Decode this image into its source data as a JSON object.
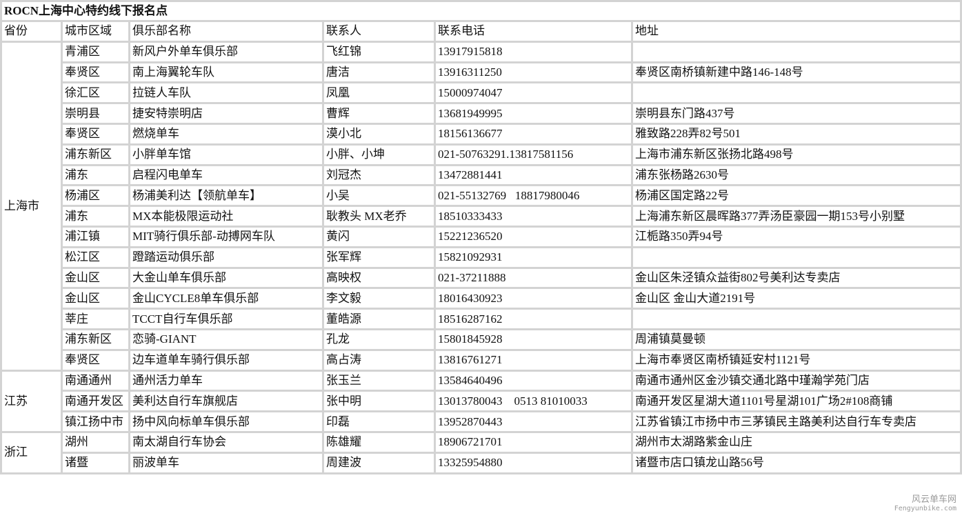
{
  "title": "ROCN上海中心特约线下报名点",
  "headers": [
    "省份",
    "城市区域",
    "俱乐部名称",
    "联系人",
    "联系电话",
    "地址"
  ],
  "groups": [
    {
      "province": "上海市",
      "rows": [
        [
          "青浦区",
          "新风户外单车俱乐部",
          "飞红锦",
          "13917915818",
          ""
        ],
        [
          "奉贤区",
          "南上海翼轮车队",
          "唐洁",
          "13916311250",
          "奉贤区南桥镇新建中路146-148号"
        ],
        [
          "徐汇区",
          "拉链人车队",
          "凤凰",
          "15000974047",
          ""
        ],
        [
          "崇明县",
          "捷安特崇明店",
          "曹辉",
          "13681949995",
          "崇明县东门路437号"
        ],
        [
          "奉贤区",
          "燃烧单车",
          "漠小北",
          "18156136677",
          "雅致路228弄82号501"
        ],
        [
          "浦东新区",
          "小胖单车馆",
          "小胖、小坤",
          "021-50763291.13817581156",
          "上海市浦东新区张扬北路498号"
        ],
        [
          "浦东",
          "启程闪电单车",
          "刘冠杰",
          "13472881441",
          "浦东张杨路2630号"
        ],
        [
          "杨浦区",
          "杨浦美利达【领航单车】",
          "小吴",
          "021-55132769   18817980046",
          "杨浦区国定路22号"
        ],
        [
          "浦东",
          "MX本能极限运动社",
          "耿教头 MX老乔",
          "18510333433",
          "上海浦东新区晨晖路377弄汤臣豪园一期153号小别墅"
        ],
        [
          "浦江镇",
          "MIT骑行俱乐部-动搏网车队",
          "黄闪",
          "15221236520",
          "江栀路350弄94号"
        ],
        [
          "松江区",
          "蹬踏运动俱乐部",
          "张军辉",
          "15821092931",
          ""
        ],
        [
          "金山区",
          "大金山单车俱乐部",
          "高映权",
          "021-37211888",
          "金山区朱泾镇众益街802号美利达专卖店"
        ],
        [
          "金山区",
          "金山CYCLE8单车俱乐部",
          "李文毅",
          "18016430923",
          "金山区 金山大道2191号"
        ],
        [
          "莘庄",
          "TCCT自行车俱乐部",
          "董皓源",
          "18516287162",
          ""
        ],
        [
          "浦东新区",
          "恋骑-GIANT",
          "孔龙",
          "15801845928",
          "周浦镇莫曼顿"
        ],
        [
          "奉贤区",
          "边车道单车骑行俱乐部",
          "高占涛",
          "13816761271",
          "上海市奉贤区南桥镇延安村1121号"
        ]
      ]
    },
    {
      "province": "江苏",
      "rows": [
        [
          "南通通州",
          "通州活力单车",
          "张玉兰",
          "13584640496",
          "南通市通州区金沙镇交通北路中瑾瀚学苑门店"
        ],
        [
          "南通开发区",
          "美利达自行车旗舰店",
          "张中明",
          "13013780043    0513 81010033",
          "南通开发区星湖大道1101号星湖101广场2#108商铺"
        ],
        [
          "镇江扬中市",
          "扬中风向标单车俱乐部",
          "印磊",
          "13952870443",
          "江苏省镇江市扬中市三茅镇民主路美利达自行车专卖店"
        ]
      ]
    },
    {
      "province": "浙江",
      "rows": [
        [
          "湖州",
          "南太湖自行车协会",
          "陈雄耀",
          "18906721701",
          "湖州市太湖路紫金山庄"
        ],
        [
          "诸暨",
          "丽波单车",
          "周建波",
          "13325954880",
          "诸暨市店口镇龙山路56号"
        ]
      ]
    }
  ],
  "watermark": {
    "line1": "风云单车网",
    "line2": "Fengyunbike.com"
  }
}
